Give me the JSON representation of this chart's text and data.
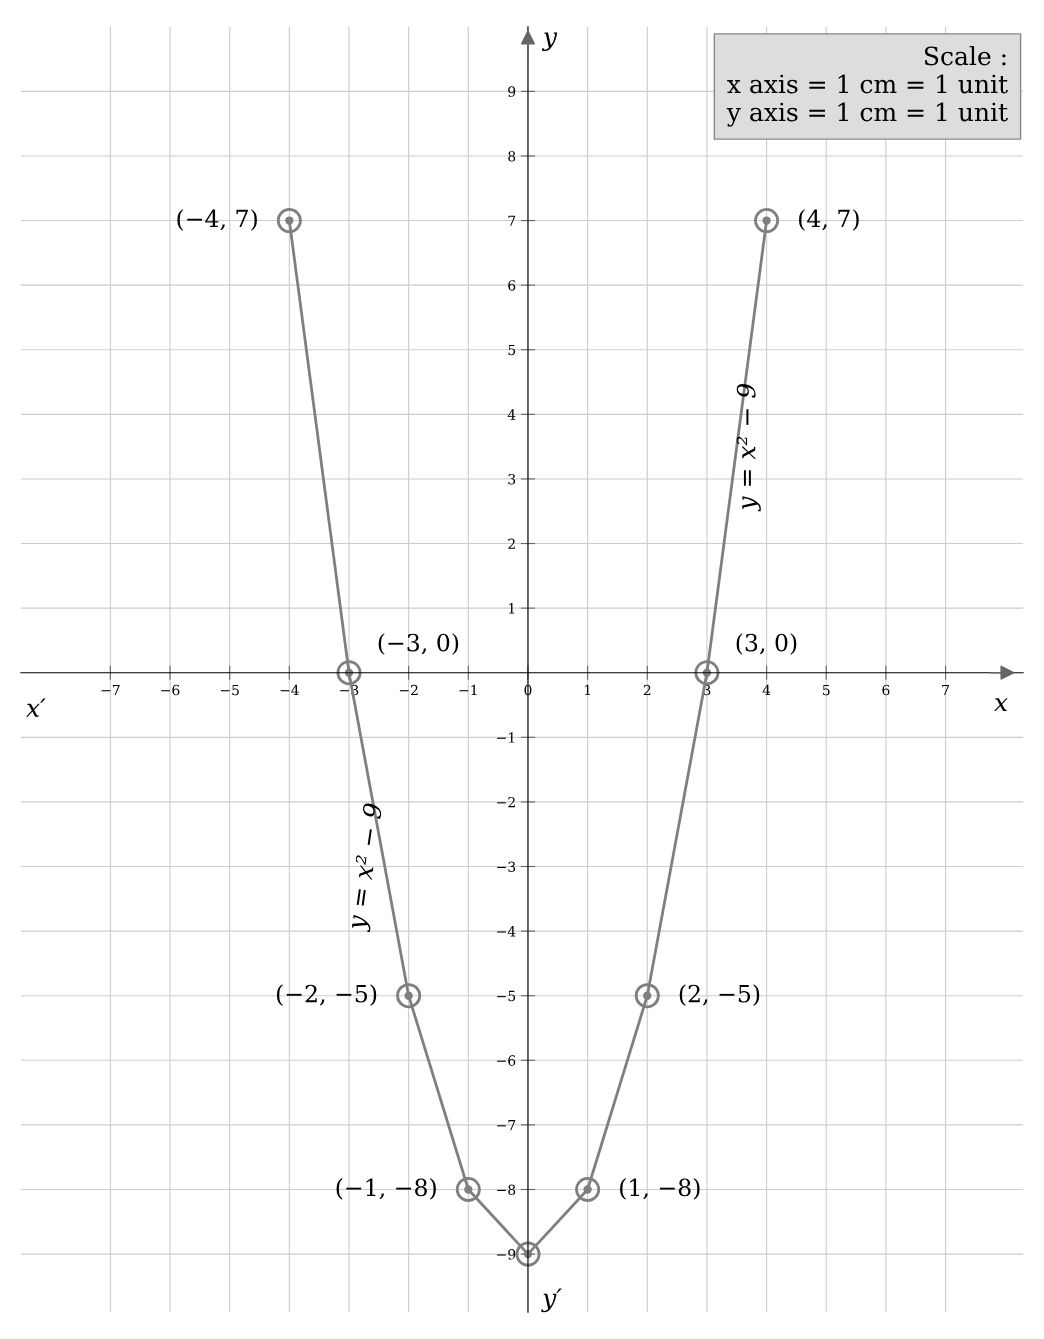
{
  "chart_data": {
    "type": "line",
    "xlabel": "x",
    "ylabel": "y",
    "x": [
      -4,
      -3,
      -2,
      -1,
      0,
      1,
      2,
      3,
      4
    ],
    "series": [
      {
        "color": "#7f7f7f",
        "values": [
          7,
          0,
          -5,
          -8,
          -9,
          -8,
          -5,
          0,
          7
        ]
      }
    ],
    "marker": "circle",
    "line_style": "solid",
    "grid": true,
    "xlim": [
      -8.5,
      8.3
    ],
    "ylim": [
      -9.9,
      10.0
    ],
    "xticks": [
      {
        "value": -7,
        "label": "−7"
      },
      {
        "value": -6,
        "label": "−6"
      },
      {
        "value": -5,
        "label": "−5"
      },
      {
        "value": -4,
        "label": "−4"
      },
      {
        "value": -3,
        "label": "−3"
      },
      {
        "value": -2,
        "label": "−2"
      },
      {
        "value": -1,
        "label": "−1"
      },
      0,
      1,
      2,
      3,
      4,
      5,
      6,
      7
    ],
    "yticks": [
      {
        "value": -9,
        "label": "−9"
      },
      {
        "value": -8,
        "label": "−8"
      },
      {
        "value": -7,
        "label": "−7"
      },
      {
        "value": -6,
        "label": "−6"
      },
      {
        "value": -5,
        "label": "−5"
      },
      {
        "value": -4,
        "label": "−4"
      },
      {
        "value": -3,
        "label": "−3"
      },
      {
        "value": -2,
        "label": "−2"
      },
      {
        "value": -1,
        "label": "−1"
      },
      1,
      2,
      3,
      4,
      5,
      6,
      7,
      8,
      9
    ],
    "annotations": [
      {
        "text": "(−4, 7)",
        "x": -4,
        "y": 7
      },
      {
        "text": "(−3, 0)",
        "x": -3,
        "y": 0
      },
      {
        "text": "(−2, −5)",
        "x": -2,
        "y": -5
      },
      {
        "text": "(−1, −8)",
        "x": -1,
        "y": -8
      },
      {
        "text": "(1, −8)",
        "x": 1,
        "y": -8
      },
      {
        "text": "(2, −5)",
        "x": 2,
        "y": -5
      },
      {
        "text": "(3, 0)",
        "x": 3,
        "y": 0
      },
      {
        "text": "(4, 7)",
        "x": 4,
        "y": 7
      },
      "y = x² − 9",
      "y = x² − 9",
      "x′",
      "y′",
      "Scale :\nx axis = 1 cm = 1 unit\ny axis = 1 cm = 1 unit"
    ]
  }
}
